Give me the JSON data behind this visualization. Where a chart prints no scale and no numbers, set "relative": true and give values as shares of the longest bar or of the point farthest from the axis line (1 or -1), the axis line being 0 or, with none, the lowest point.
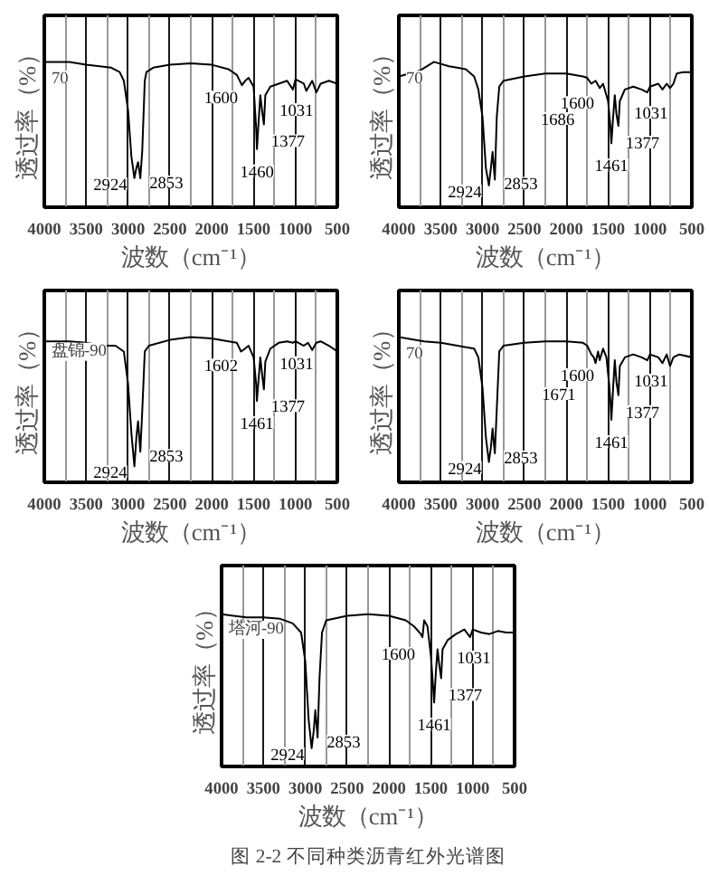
{
  "chart_data": [
    {
      "type": "line",
      "relative": true,
      "xlabel": "波数（cm⁻¹）",
      "ylabel": "透过率（%）",
      "xlim": [
        4000,
        500
      ],
      "xticks": [
        4000,
        3500,
        3000,
        2500,
        2000,
        1500,
        1000,
        500
      ],
      "grid": "x",
      "line_style": "solid",
      "x": [
        4000,
        3700,
        3500,
        3200,
        3100,
        3050,
        3000,
        2960,
        2924,
        2900,
        2880,
        2853,
        2830,
        2800,
        2780,
        2700,
        2500,
        2250,
        2000,
        1800,
        1700,
        1640,
        1600,
        1560,
        1500,
        1470,
        1460,
        1440,
        1420,
        1400,
        1377,
        1360,
        1300,
        1200,
        1100,
        1031,
        1000,
        900,
        870,
        800,
        750,
        700,
        600,
        500
      ],
      "series": [
        {
          "color": "#000000",
          "values": [
            1.0,
            1.0,
            0.98,
            0.96,
            0.93,
            0.87,
            0.67,
            0.35,
            0.2,
            0.27,
            0.31,
            0.2,
            0.39,
            0.87,
            0.93,
            0.96,
            0.98,
            0.99,
            0.98,
            0.95,
            0.91,
            0.84,
            0.87,
            0.89,
            0.83,
            0.55,
            0.4,
            0.59,
            0.77,
            0.67,
            0.57,
            0.77,
            0.83,
            0.85,
            0.87,
            0.81,
            0.88,
            0.85,
            0.8,
            0.87,
            0.79,
            0.85,
            0.87,
            0.85
          ]
        }
      ],
      "annotations": [
        "70",
        {
          "text": "2924",
          "x": 2924,
          "y": 0.2
        },
        {
          "text": "2853",
          "x": 2853,
          "y": 0.2
        },
        {
          "text": "1600",
          "x": 1600,
          "y": 0.87
        },
        {
          "text": "1460",
          "x": 1460,
          "y": 0.4
        },
        {
          "text": "1377",
          "x": 1377,
          "y": 0.57
        },
        {
          "text": "1031",
          "x": 1031,
          "y": 0.81
        }
      ]
    },
    {
      "type": "line",
      "relative": true,
      "xlabel": "波数（cm⁻¹）",
      "ylabel": "透过率（%）",
      "xlim": [
        4000,
        500
      ],
      "xticks": [
        4000,
        3500,
        3000,
        2500,
        2000,
        1500,
        1000,
        500
      ],
      "grid": "x",
      "line_style": "solid",
      "x": [
        4000,
        3750,
        3580,
        3400,
        3200,
        3100,
        3050,
        3000,
        2960,
        2924,
        2900,
        2880,
        2853,
        2830,
        2800,
        2750,
        2500,
        2250,
        2000,
        1800,
        1750,
        1700,
        1650,
        1600,
        1560,
        1500,
        1470,
        1461,
        1440,
        1420,
        1400,
        1377,
        1360,
        1300,
        1200,
        1100,
        1031,
        1000,
        900,
        850,
        800,
        760,
        720,
        680,
        600,
        500
      ],
      "series": [
        {
          "color": "#000000",
          "values": [
            0.9,
            0.94,
            1.0,
            0.97,
            0.95,
            0.9,
            0.81,
            0.62,
            0.27,
            0.15,
            0.27,
            0.38,
            0.19,
            0.62,
            0.83,
            0.87,
            0.9,
            0.92,
            0.92,
            0.9,
            0.89,
            0.85,
            0.87,
            0.82,
            0.85,
            0.73,
            0.54,
            0.44,
            0.62,
            0.77,
            0.64,
            0.56,
            0.73,
            0.81,
            0.83,
            0.81,
            0.79,
            0.83,
            0.85,
            0.81,
            0.85,
            0.82,
            0.85,
            0.92,
            0.93,
            0.93
          ]
        }
      ],
      "annotations": [
        "70",
        {
          "text": "2924",
          "x": 2924,
          "y": 0.15
        },
        {
          "text": "2853",
          "x": 2853,
          "y": 0.19
        },
        {
          "text": "1686",
          "x": 1686,
          "y": 0.86
        },
        {
          "text": "1600",
          "x": 1600,
          "y": 0.82
        },
        {
          "text": "1461",
          "x": 1461,
          "y": 0.44
        },
        {
          "text": "1377",
          "x": 1377,
          "y": 0.56
        },
        {
          "text": "1031",
          "x": 1031,
          "y": 0.79
        }
      ]
    },
    {
      "type": "line",
      "relative": true,
      "xlabel": "波数（cm⁻¹）",
      "ylabel": "透过率（%）",
      "xlim": [
        4000,
        500
      ],
      "xticks": [
        4000,
        3500,
        3000,
        2500,
        2000,
        1500,
        1000,
        500
      ],
      "grid": "x",
      "line_style": "solid",
      "x": [
        4000,
        3700,
        3500,
        3300,
        3150,
        3050,
        3000,
        2960,
        2924,
        2900,
        2880,
        2853,
        2830,
        2800,
        2750,
        2500,
        2250,
        2000,
        1800,
        1700,
        1650,
        1602,
        1560,
        1500,
        1470,
        1461,
        1440,
        1420,
        1400,
        1377,
        1360,
        1300,
        1200,
        1100,
        1031,
        1000,
        900,
        850,
        800,
        750,
        700,
        600,
        500
      ],
      "series": [
        {
          "color": "#000000",
          "values": [
            0.97,
            0.97,
            0.96,
            0.94,
            0.94,
            0.9,
            0.68,
            0.34,
            0.11,
            0.31,
            0.42,
            0.21,
            0.49,
            0.9,
            0.94,
            0.98,
            1.0,
            0.99,
            0.97,
            0.96,
            0.9,
            0.92,
            0.94,
            0.86,
            0.68,
            0.56,
            0.71,
            0.86,
            0.75,
            0.64,
            0.83,
            0.92,
            0.96,
            0.97,
            0.96,
            0.97,
            0.94,
            0.96,
            0.91,
            0.96,
            0.97,
            0.94,
            0.9
          ]
        }
      ],
      "annotations": [
        "盘锦-90",
        {
          "text": "2924",
          "x": 2924,
          "y": 0.11
        },
        {
          "text": "2853",
          "x": 2853,
          "y": 0.21
        },
        {
          "text": "1602",
          "x": 1602,
          "y": 0.92
        },
        {
          "text": "1461",
          "x": 1461,
          "y": 0.56
        },
        {
          "text": "1377",
          "x": 1377,
          "y": 0.64
        },
        {
          "text": "1031",
          "x": 1031,
          "y": 0.96
        }
      ]
    },
    {
      "type": "line",
      "relative": true,
      "xlabel": "波数（cm⁻¹）",
      "ylabel": "透过率（%）",
      "xlim": [
        4000,
        500
      ],
      "xticks": [
        4000,
        3500,
        3000,
        2500,
        2000,
        1500,
        1000,
        500
      ],
      "grid": "x",
      "line_style": "solid",
      "x": [
        4000,
        3700,
        3500,
        3300,
        3100,
        3050,
        3000,
        2960,
        2924,
        2900,
        2880,
        2853,
        2830,
        2800,
        2750,
        2500,
        2250,
        2000,
        1800,
        1750,
        1700,
        1671,
        1650,
        1620,
        1600,
        1560,
        1520,
        1490,
        1470,
        1461,
        1440,
        1420,
        1400,
        1377,
        1360,
        1300,
        1200,
        1100,
        1031,
        1000,
        900,
        850,
        800,
        760,
        720,
        650,
        500
      ],
      "series": [
        {
          "color": "#000000",
          "values": [
            1.0,
            0.97,
            0.96,
            0.94,
            0.92,
            0.86,
            0.65,
            0.31,
            0.14,
            0.24,
            0.37,
            0.2,
            0.5,
            0.9,
            0.94,
            0.96,
            0.97,
            0.97,
            0.96,
            0.94,
            0.88,
            0.86,
            0.82,
            0.9,
            0.84,
            0.92,
            0.86,
            0.69,
            0.54,
            0.43,
            0.65,
            0.84,
            0.69,
            0.6,
            0.8,
            0.86,
            0.88,
            0.86,
            0.84,
            0.88,
            0.86,
            0.82,
            0.88,
            0.8,
            0.86,
            0.88,
            0.86
          ]
        }
      ],
      "annotations": [
        "70",
        {
          "text": "2924",
          "x": 2924,
          "y": 0.14
        },
        {
          "text": "2853",
          "x": 2853,
          "y": 0.2
        },
        {
          "text": "1671",
          "x": 1671,
          "y": 0.86
        },
        {
          "text": "1600",
          "x": 1600,
          "y": 0.84
        },
        {
          "text": "1461",
          "x": 1461,
          "y": 0.43
        },
        {
          "text": "1377",
          "x": 1377,
          "y": 0.6
        },
        {
          "text": "1031",
          "x": 1031,
          "y": 0.84
        }
      ]
    },
    {
      "type": "line",
      "relative": true,
      "xlabel": "波数（cm⁻¹）",
      "ylabel": "透过率（%）",
      "xlim": [
        4000,
        500
      ],
      "xticks": [
        4000,
        3500,
        3000,
        2500,
        2000,
        1500,
        1000,
        500
      ],
      "grid": "x",
      "line_style": "solid",
      "x": [
        4000,
        3700,
        3500,
        3300,
        3150,
        3050,
        3000,
        2960,
        2924,
        2900,
        2880,
        2853,
        2830,
        2800,
        2750,
        2500,
        2250,
        2000,
        1800,
        1700,
        1620,
        1600,
        1580,
        1540,
        1500,
        1470,
        1461,
        1440,
        1420,
        1400,
        1377,
        1360,
        1300,
        1200,
        1100,
        1031,
        1000,
        900,
        800,
        700,
        600,
        500
      ],
      "series": [
        {
          "color": "#000000",
          "values": [
            1.0,
            0.98,
            0.98,
            0.97,
            0.94,
            0.88,
            0.69,
            0.31,
            0.12,
            0.23,
            0.37,
            0.19,
            0.58,
            0.88,
            0.96,
            0.99,
            1.0,
            0.99,
            0.96,
            0.92,
            0.87,
            0.85,
            0.96,
            0.92,
            0.73,
            0.5,
            0.42,
            0.62,
            0.77,
            0.67,
            0.58,
            0.77,
            0.83,
            0.87,
            0.9,
            0.85,
            0.9,
            0.88,
            0.87,
            0.89,
            0.88,
            0.88
          ]
        }
      ],
      "annotations": [
        "塔河-90",
        {
          "text": "2924",
          "x": 2924,
          "y": 0.12
        },
        {
          "text": "2853",
          "x": 2853,
          "y": 0.19
        },
        {
          "text": "1600",
          "x": 1600,
          "y": 0.85
        },
        {
          "text": "1461",
          "x": 1461,
          "y": 0.42
        },
        {
          "text": "1377",
          "x": 1377,
          "y": 0.58
        },
        {
          "text": "1031",
          "x": 1031,
          "y": 0.85
        },
        "图 2-2 不同种类沥青红外光谱图"
      ]
    }
  ]
}
